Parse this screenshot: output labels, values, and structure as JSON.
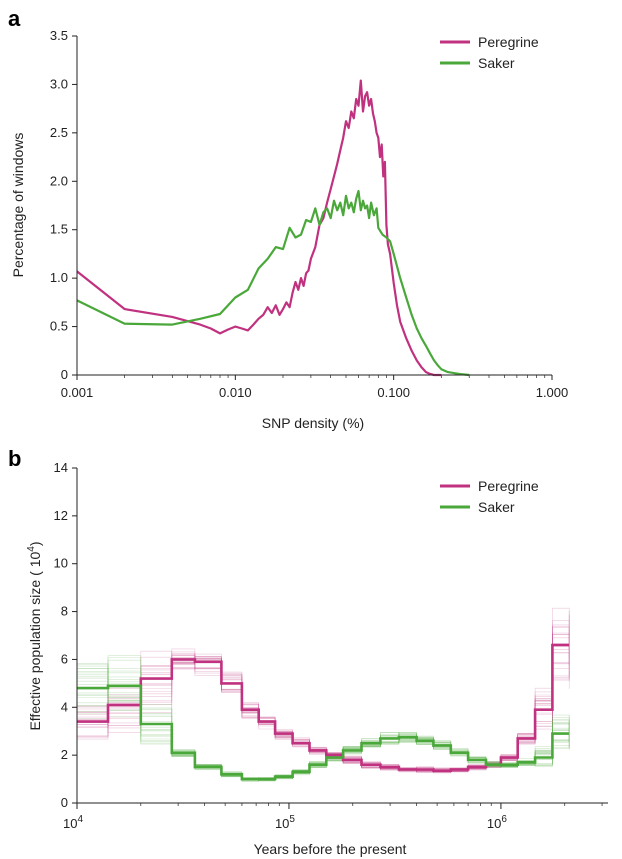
{
  "colors": {
    "peregrine": "#c0317f",
    "saker": "#4aa83a",
    "axis": "#222222"
  },
  "chart_data": [
    {
      "panel": "a",
      "type": "line",
      "xscale": "log",
      "xlabel": "SNP density (%)",
      "ylabel": "Percentage of windows",
      "xlim": [
        0.001,
        1.0
      ],
      "ylim": [
        0,
        3.5
      ],
      "xticks": [
        "0.001",
        "0.010",
        "0.100",
        "1.000"
      ],
      "xtick_values": [
        0.001,
        0.01,
        0.1,
        1.0
      ],
      "yticks": [
        "0",
        "0.5",
        "1.0",
        "1.5",
        "2.0",
        "2.5",
        "3.0",
        "3.5"
      ],
      "ytick_values": [
        0,
        0.5,
        1.0,
        1.5,
        2.0,
        2.5,
        3.0,
        3.5
      ],
      "legend": "top-right",
      "series": [
        {
          "name": "Peregrine",
          "color": "#c0317f",
          "x": [
            0.001,
            0.002,
            0.004,
            0.006,
            0.007,
            0.008,
            0.009,
            0.01,
            0.011,
            0.012,
            0.013,
            0.014,
            0.015,
            0.016,
            0.017,
            0.018,
            0.019,
            0.02,
            0.021,
            0.022,
            0.023,
            0.024,
            0.025,
            0.026,
            0.027,
            0.028,
            0.029,
            0.03,
            0.032,
            0.034,
            0.036,
            0.038,
            0.04,
            0.042,
            0.044,
            0.046,
            0.048,
            0.05,
            0.052,
            0.054,
            0.056,
            0.058,
            0.06,
            0.062,
            0.064,
            0.066,
            0.068,
            0.07,
            0.072,
            0.074,
            0.076,
            0.078,
            0.08,
            0.082,
            0.084,
            0.086,
            0.088,
            0.09,
            0.092,
            0.095,
            0.1,
            0.105,
            0.11,
            0.12,
            0.13,
            0.14,
            0.15,
            0.16,
            0.17,
            0.18,
            0.2
          ],
          "y": [
            1.07,
            0.68,
            0.6,
            0.52,
            0.48,
            0.43,
            0.47,
            0.5,
            0.48,
            0.46,
            0.52,
            0.58,
            0.62,
            0.7,
            0.64,
            0.72,
            0.62,
            0.68,
            0.75,
            0.7,
            0.85,
            0.96,
            0.88,
            1.0,
            0.92,
            1.05,
            1.08,
            1.2,
            1.32,
            1.55,
            1.62,
            1.78,
            1.92,
            2.05,
            2.18,
            2.32,
            2.45,
            2.62,
            2.55,
            2.72,
            2.65,
            2.85,
            2.78,
            3.04,
            2.72,
            2.88,
            2.92,
            2.78,
            2.85,
            2.7,
            2.62,
            2.5,
            2.45,
            2.25,
            2.38,
            2.05,
            2.2,
            1.55,
            1.35,
            1.25,
            0.95,
            0.72,
            0.55,
            0.38,
            0.25,
            0.15,
            0.08,
            0.03,
            0.01,
            0.0,
            0.0
          ]
        },
        {
          "name": "Saker",
          "color": "#4aa83a",
          "x": [
            0.001,
            0.002,
            0.004,
            0.006,
            0.008,
            0.01,
            0.012,
            0.014,
            0.016,
            0.018,
            0.02,
            0.022,
            0.024,
            0.026,
            0.028,
            0.03,
            0.032,
            0.034,
            0.036,
            0.038,
            0.04,
            0.042,
            0.044,
            0.046,
            0.048,
            0.05,
            0.052,
            0.054,
            0.056,
            0.058,
            0.06,
            0.062,
            0.064,
            0.066,
            0.068,
            0.07,
            0.072,
            0.075,
            0.078,
            0.08,
            0.085,
            0.09,
            0.095,
            0.1,
            0.11,
            0.12,
            0.13,
            0.14,
            0.15,
            0.16,
            0.17,
            0.18,
            0.19,
            0.2,
            0.22,
            0.24,
            0.26,
            0.3
          ],
          "y": [
            0.77,
            0.53,
            0.52,
            0.58,
            0.63,
            0.8,
            0.88,
            1.1,
            1.2,
            1.32,
            1.3,
            1.52,
            1.42,
            1.45,
            1.6,
            1.58,
            1.72,
            1.55,
            1.68,
            1.72,
            1.62,
            1.8,
            1.7,
            1.78,
            1.65,
            1.85,
            1.72,
            1.78,
            1.68,
            1.82,
            1.9,
            1.7,
            1.8,
            1.72,
            1.75,
            1.62,
            1.78,
            1.65,
            1.72,
            1.52,
            1.45,
            1.42,
            1.38,
            1.25,
            1.0,
            0.8,
            0.62,
            0.48,
            0.38,
            0.3,
            0.22,
            0.15,
            0.1,
            0.06,
            0.03,
            0.02,
            0.01,
            0.0
          ]
        }
      ]
    },
    {
      "panel": "b",
      "type": "line",
      "xscale": "log",
      "ylabel_main": "Effective population size (",
      "ylabel_base": "10",
      "ylabel_exp": "4",
      "ylabel_end": ")",
      "xlabel": "Years before the present",
      "xlim": [
        10000,
        3200000
      ],
      "ylim": [
        0,
        14
      ],
      "xticks": [
        {
          "base": "10",
          "exp": "4"
        },
        {
          "base": "10",
          "exp": "5"
        },
        {
          "base": "10",
          "exp": "6"
        }
      ],
      "xtick_values": [
        10000,
        100000,
        1000000
      ],
      "yticks": [
        "0",
        "2",
        "4",
        "6",
        "8",
        "10",
        "12",
        "14"
      ],
      "ytick_values": [
        0,
        2,
        4,
        6,
        8,
        10,
        12,
        14
      ],
      "legend": "top-right",
      "series": [
        {
          "name": "Peregrine",
          "color": "#c0317f",
          "style": "step",
          "x": [
            10000,
            14000,
            20000,
            28000,
            36000,
            48000,
            60000,
            72000,
            86000,
            104000,
            125000,
            150000,
            180000,
            220000,
            270000,
            330000,
            400000,
            480000,
            580000,
            700000,
            850000,
            1000000,
            1200000,
            1450000,
            1750000,
            2100000
          ],
          "y": [
            3.4,
            4.1,
            5.2,
            6.0,
            5.9,
            5.0,
            3.9,
            3.4,
            2.9,
            2.5,
            2.2,
            2.0,
            1.8,
            1.6,
            1.5,
            1.4,
            1.4,
            1.35,
            1.4,
            1.5,
            1.6,
            1.9,
            2.7,
            3.9,
            6.6,
            6.6
          ]
        },
        {
          "name": "Saker",
          "color": "#4aa83a",
          "style": "step",
          "x": [
            10000,
            14000,
            20000,
            28000,
            36000,
            48000,
            60000,
            72000,
            86000,
            104000,
            125000,
            150000,
            180000,
            220000,
            270000,
            330000,
            400000,
            480000,
            580000,
            700000,
            850000,
            1000000,
            1200000,
            1450000,
            1750000,
            2100000
          ],
          "y": [
            4.8,
            4.9,
            3.3,
            2.1,
            1.5,
            1.2,
            1.0,
            1.0,
            1.1,
            1.3,
            1.6,
            1.9,
            2.2,
            2.5,
            2.7,
            2.75,
            2.6,
            2.4,
            2.1,
            1.8,
            1.6,
            1.6,
            1.7,
            1.9,
            2.9,
            2.9
          ]
        }
      ]
    }
  ]
}
